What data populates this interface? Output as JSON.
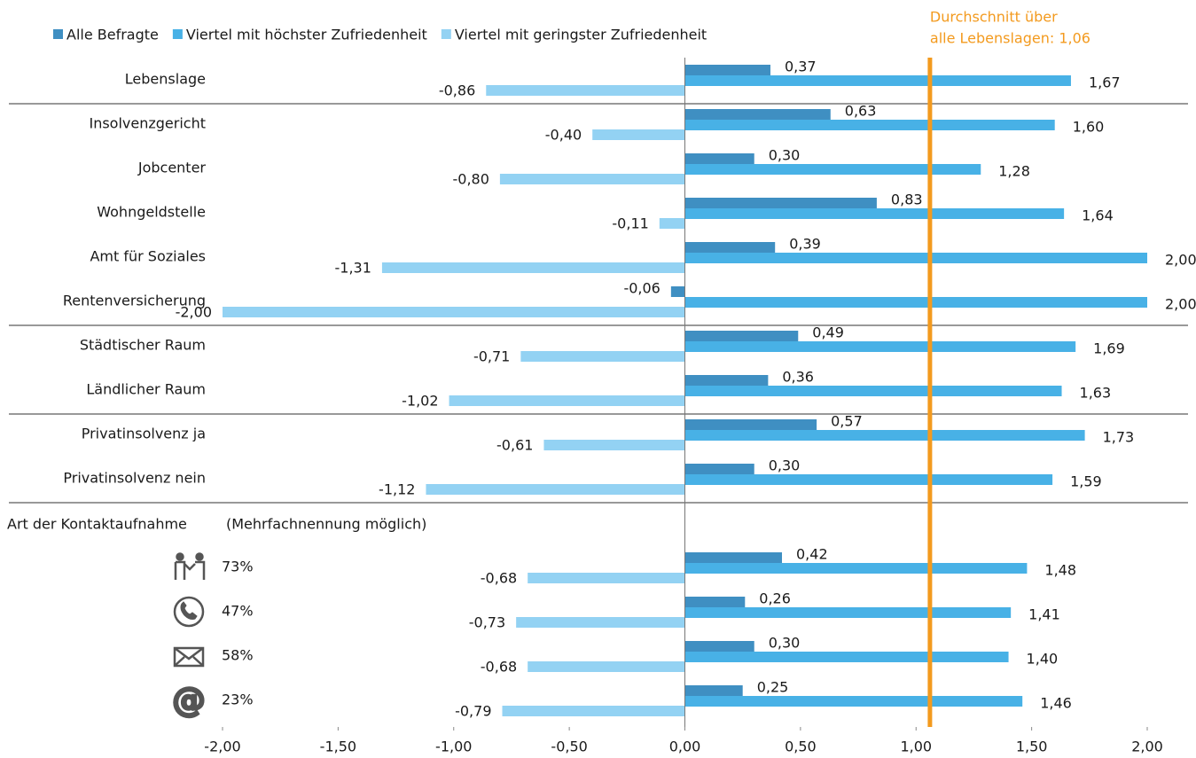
{
  "chart_data": {
    "type": "bar",
    "orientation": "horizontal",
    "categories": [
      "Lebenslage",
      "Insolvenzgericht",
      "Jobcenter",
      "Wohngeldstelle",
      "Amt für Soziales",
      "Rentenversicherung",
      "Städtischer Raum",
      "Ländlicher Raum",
      "Privatinsolvenz ja",
      "Privatinsolvenz nein",
      "73%",
      "47%",
      "58%",
      "23%"
    ],
    "series": [
      {
        "name": "Alle Befragte",
        "color": "#3f8fc2",
        "values": [
          0.37,
          0.63,
          0.3,
          0.83,
          0.39,
          -0.06,
          0.49,
          0.36,
          0.57,
          0.3,
          0.42,
          0.26,
          0.3,
          0.25
        ],
        "value_labels": [
          "0,37",
          "0,63",
          "0,30",
          "0,83",
          "0,39",
          "-0,06",
          "0,49",
          "0,36",
          "0,57",
          "0,30",
          "0,42",
          "0,26",
          "0,30",
          "0,25"
        ]
      },
      {
        "name": "Viertel mit höchster Zufriedenheit",
        "color": "#48b1e6",
        "values": [
          1.67,
          1.6,
          1.28,
          1.64,
          2.0,
          2.0,
          1.69,
          1.63,
          1.73,
          1.59,
          1.48,
          1.41,
          1.4,
          1.46
        ],
        "value_labels": [
          "1,67",
          "1,60",
          "1,28",
          "1,64",
          "2,00",
          "2,00",
          "1,69",
          "1,63",
          "1,73",
          "1,59",
          "1,48",
          "1,41",
          "1,40",
          "1,46"
        ]
      },
      {
        "name": "Viertel mit geringster Zufriedenheit",
        "color": "#93d2f3",
        "values": [
          -0.86,
          -0.4,
          -0.8,
          -0.11,
          -1.31,
          -2.0,
          -0.71,
          -1.02,
          -0.61,
          -1.12,
          -0.68,
          -0.73,
          -0.68,
          -0.79
        ],
        "value_labels": [
          "-0,86",
          "-0,40",
          "-0,80",
          "-0,11",
          "-1,31",
          "-2,00",
          "-0,71",
          "-1,02",
          "-0,61",
          "-1,12",
          "-0,68",
          "-0,73",
          "-0,68",
          "-0,79"
        ]
      }
    ],
    "xlim": [
      -2,
      2
    ],
    "xticks": [
      {
        "value": -2,
        "label": "-2,00"
      },
      {
        "value": -1.5,
        "label": "-1,50"
      },
      {
        "value": -1,
        "label": "-1,00"
      },
      {
        "value": -0.5,
        "label": "-0,50"
      },
      {
        "value": 0,
        "label": "0,00"
      },
      {
        "value": 0.5,
        "label": "0,50"
      },
      {
        "value": 1,
        "label": "1,00"
      },
      {
        "value": 1.5,
        "label": "1,50"
      },
      {
        "value": 2,
        "label": "2,00"
      }
    ],
    "reference_line": {
      "value": 1.06,
      "color": "#f39a1e",
      "label": [
        "Durchschnitt über",
        "alle Lebenslagen: 1,06"
      ]
    },
    "annotations": [
      "Art der Kontaktaufnahme",
      "(Mehrfachnennung möglich)"
    ],
    "legend": "top-left"
  }
}
